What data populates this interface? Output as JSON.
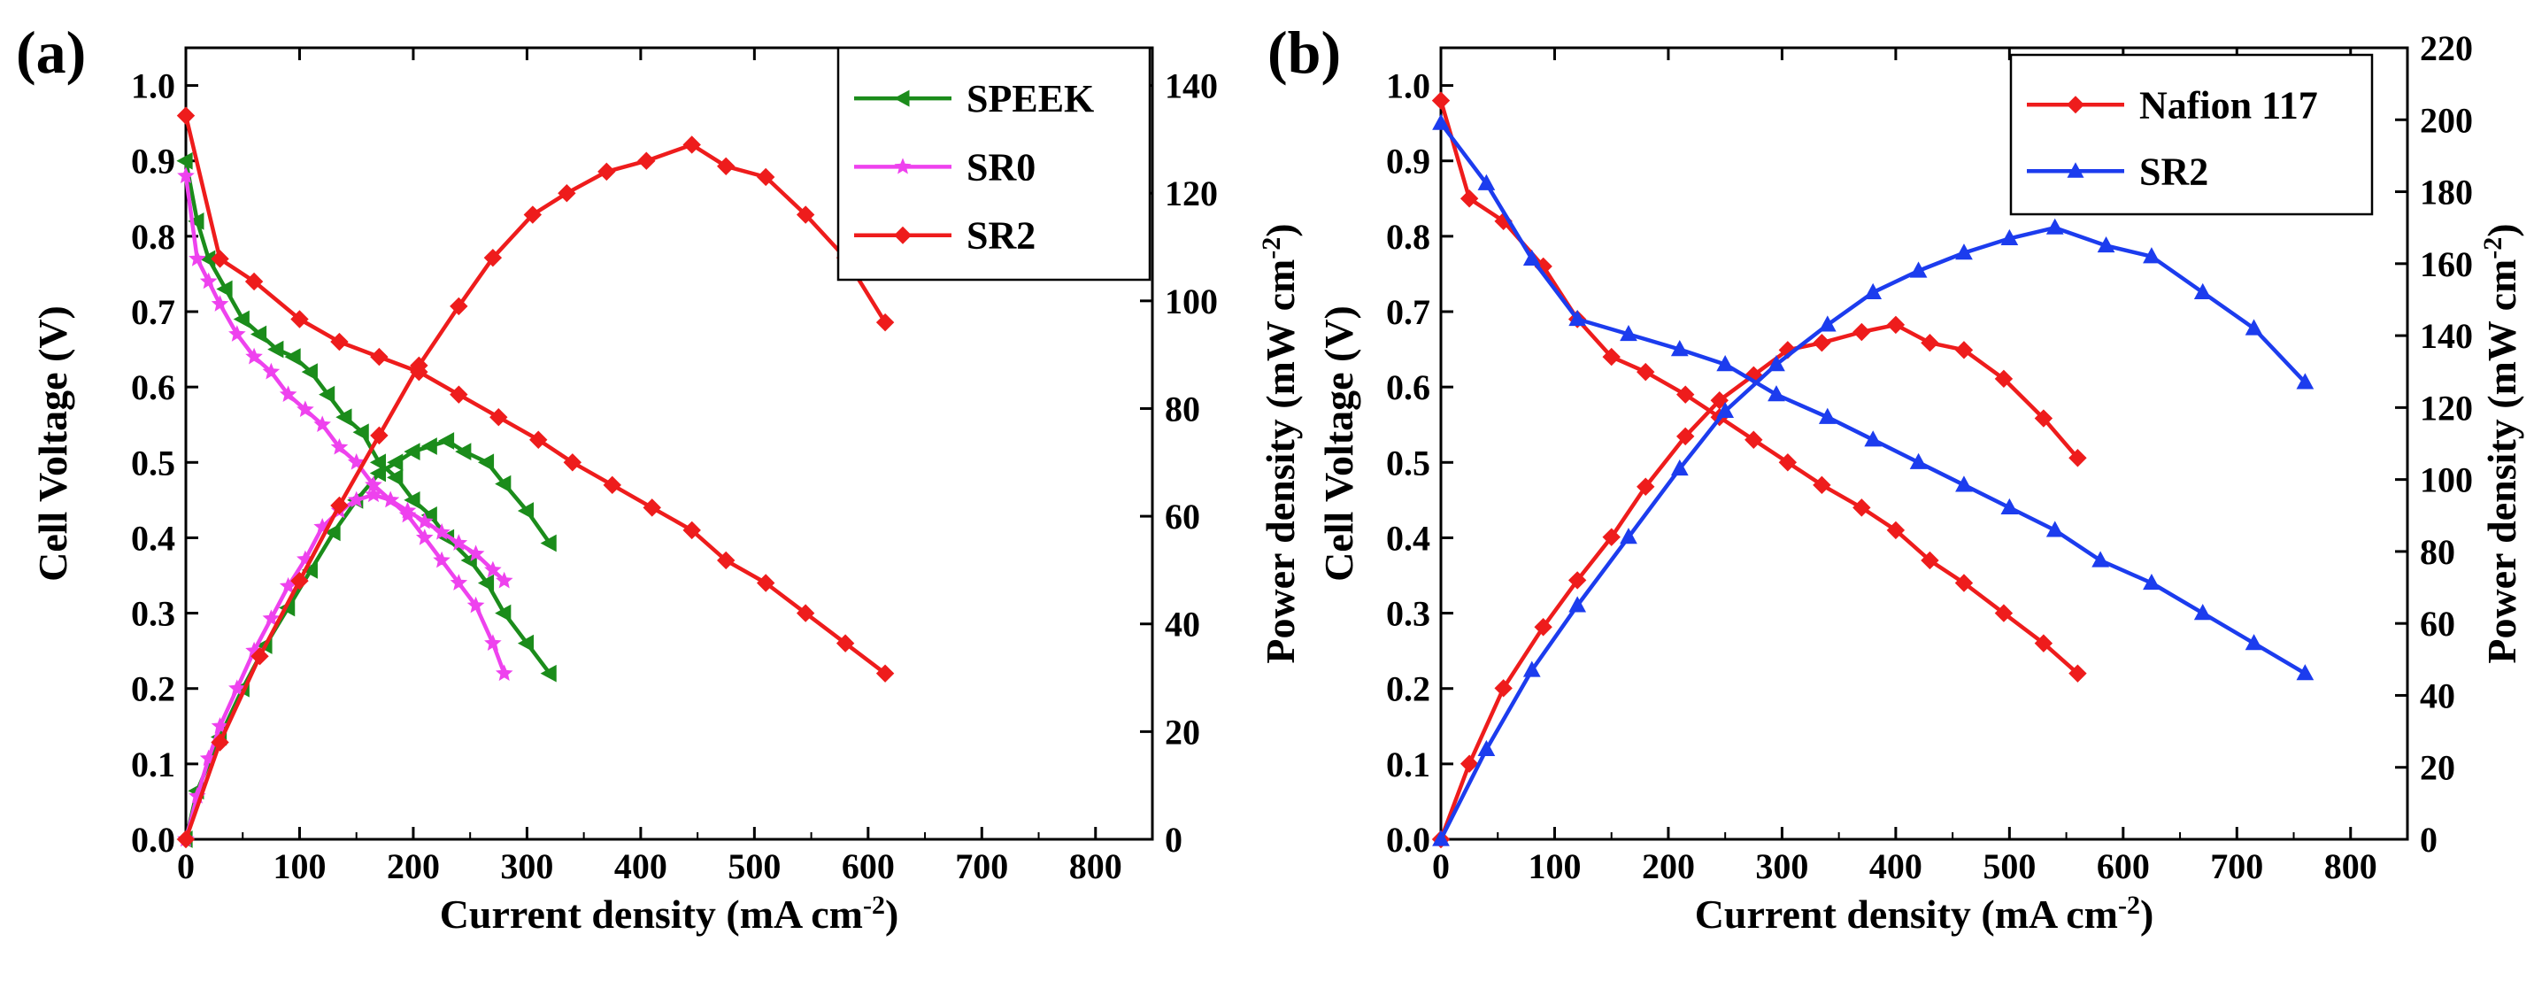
{
  "chart_data": [
    {
      "type": "line",
      "panel_label": "(a)",
      "xlabel": "Current density (mA cm",
      "xlabel_sup": "-2",
      "xlabel_end": ")",
      "ylabel_left": "Cell Voltage (V)",
      "ylabel_right": "Power density (mW cm",
      "ylabel_right_sup": "-2",
      "ylabel_right_end": ")",
      "xlim": [
        0,
        850
      ],
      "ylim_left": [
        0,
        1.05
      ],
      "ylim_right": [
        0,
        147
      ],
      "xticks": [
        "0",
        "100",
        "200",
        "300",
        "400",
        "500",
        "600",
        "700",
        "800"
      ],
      "xtick_values": [
        0,
        100,
        200,
        300,
        400,
        500,
        600,
        700,
        800
      ],
      "yticks_left": [
        "0.0",
        "0.1",
        "0.2",
        "0.3",
        "0.4",
        "0.5",
        "0.6",
        "0.7",
        "0.8",
        "0.9",
        "1.0"
      ],
      "ytick_left_values": [
        0,
        0.1,
        0.2,
        0.3,
        0.4,
        0.5,
        0.6,
        0.7,
        0.8,
        0.9,
        1.0
      ],
      "yticks_right": [
        "0",
        "20",
        "40",
        "60",
        "80",
        "100",
        "120",
        "140"
      ],
      "ytick_right_values": [
        0,
        20,
        40,
        60,
        80,
        100,
        120,
        140
      ],
      "legend_position": "top-right",
      "series": [
        {
          "name": "SPEEK",
          "color": "#1b8c1b",
          "marker": "triangle-left",
          "voltage": {
            "x": [
              0,
              10,
              20,
              35,
              50,
              65,
              80,
              95,
              110,
              125,
              140,
              155,
              170,
              185,
              200,
              215,
              230,
              250,
              265,
              280,
              300,
              320
            ],
            "y": [
              0.9,
              0.82,
              0.77,
              0.73,
              0.69,
              0.67,
              0.65,
              0.64,
              0.62,
              0.59,
              0.56,
              0.54,
              0.5,
              0.48,
              0.45,
              0.43,
              0.4,
              0.37,
              0.34,
              0.3,
              0.26,
              0.22
            ]
          },
          "power": {
            "x": [
              0,
              10,
              30,
              50,
              70,
              90,
              110,
              130,
              150,
              170,
              185,
              200,
              215,
              230,
              245,
              265,
              280,
              300,
              320
            ],
            "y": [
              0,
              9,
              19,
              28,
              36,
              43,
              50,
              57,
              63,
              68,
              70,
              72,
              73,
              74,
              72,
              70,
              66,
              61,
              55
            ]
          }
        },
        {
          "name": "SR0",
          "color": "#ee42ee",
          "marker": "star",
          "voltage": {
            "x": [
              0,
              10,
              20,
              30,
              45,
              60,
              75,
              90,
              105,
              120,
              135,
              150,
              165,
              180,
              195,
              210,
              225,
              240,
              255,
              270,
              280
            ],
            "y": [
              0.88,
              0.77,
              0.74,
              0.71,
              0.67,
              0.64,
              0.62,
              0.59,
              0.57,
              0.55,
              0.52,
              0.5,
              0.47,
              0.45,
              0.43,
              0.4,
              0.37,
              0.34,
              0.31,
              0.26,
              0.22
            ]
          },
          "power": {
            "x": [
              0,
              10,
              20,
              30,
              45,
              60,
              75,
              90,
              105,
              120,
              135,
              150,
              165,
              180,
              195,
              210,
              225,
              240,
              255,
              270,
              280
            ],
            "y": [
              0,
              8,
              15,
              21,
              28,
              35,
              41,
              47,
              52,
              58,
              61,
              63,
              64,
              63,
              61,
              59,
              57,
              55,
              53,
              50,
              48
            ]
          }
        },
        {
          "name": "SR2",
          "color": "#ee1c1c",
          "marker": "diamond",
          "voltage": {
            "x": [
              0,
              30,
              60,
              100,
              135,
              170,
              205,
              240,
              275,
              310,
              340,
              375,
              410,
              445,
              475,
              510,
              545,
              580,
              615
            ],
            "y": [
              0.96,
              0.77,
              0.74,
              0.69,
              0.66,
              0.64,
              0.62,
              0.59,
              0.56,
              0.53,
              0.5,
              0.47,
              0.44,
              0.41,
              0.37,
              0.34,
              0.3,
              0.26,
              0.22
            ]
          },
          "power": {
            "x": [
              0,
              30,
              65,
              100,
              135,
              170,
              205,
              240,
              270,
              305,
              335,
              370,
              405,
              445,
              475,
              510,
              545,
              580,
              615
            ],
            "y": [
              0,
              18,
              34,
              48,
              62,
              75,
              88,
              99,
              108,
              116,
              120,
              124,
              126,
              129,
              125,
              123,
              116,
              108,
              96
            ]
          }
        }
      ]
    },
    {
      "type": "line",
      "panel_label": "(b)",
      "xlabel": "Current density (mA cm",
      "xlabel_sup": "-2",
      "xlabel_end": ")",
      "ylabel_left": "Cell Voltage (V)",
      "ylabel_right": "Power density (mW cm",
      "ylabel_right_sup": "-2",
      "ylabel_right_end": ")",
      "xlim": [
        0,
        850
      ],
      "ylim_left": [
        0,
        1.05
      ],
      "ylim_right": [
        0,
        220
      ],
      "xticks": [
        "0",
        "100",
        "200",
        "300",
        "400",
        "500",
        "600",
        "700",
        "800"
      ],
      "xtick_values": [
        0,
        100,
        200,
        300,
        400,
        500,
        600,
        700,
        800
      ],
      "yticks_left": [
        "0.0",
        "0.1",
        "0.2",
        "0.3",
        "0.4",
        "0.5",
        "0.6",
        "0.7",
        "0.8",
        "0.9",
        "1.0"
      ],
      "ytick_left_values": [
        0,
        0.1,
        0.2,
        0.3,
        0.4,
        0.5,
        0.6,
        0.7,
        0.8,
        0.9,
        1.0
      ],
      "yticks_right": [
        "0",
        "20",
        "40",
        "60",
        "80",
        "100",
        "120",
        "140",
        "160",
        "180",
        "200",
        "220"
      ],
      "ytick_right_values": [
        0,
        20,
        40,
        60,
        80,
        100,
        120,
        140,
        160,
        180,
        200,
        220
      ],
      "legend_position": "top-right",
      "series": [
        {
          "name": "Nafion 117",
          "color": "#ee1c1c",
          "marker": "diamond",
          "voltage": {
            "x": [
              0,
              25,
              55,
              90,
              120,
              150,
              180,
              215,
              245,
              275,
              305,
              335,
              370,
              400,
              430,
              460,
              495,
              530,
              560
            ],
            "y": [
              0.98,
              0.85,
              0.82,
              0.76,
              0.69,
              0.64,
              0.62,
              0.59,
              0.56,
              0.53,
              0.5,
              0.47,
              0.44,
              0.41,
              0.37,
              0.34,
              0.3,
              0.26,
              0.22
            ]
          },
          "power": {
            "x": [
              0,
              25,
              55,
              90,
              120,
              150,
              180,
              215,
              245,
              275,
              305,
              335,
              370,
              400,
              430,
              460,
              495,
              530,
              560
            ],
            "y": [
              0,
              21,
              42,
              59,
              72,
              84,
              98,
              112,
              122,
              129,
              136,
              138,
              141,
              143,
              138,
              136,
              128,
              117,
              106
            ]
          }
        },
        {
          "name": "SR2",
          "color": "#1c3cee",
          "marker": "triangle-up",
          "voltage": {
            "x": [
              0,
              40,
              80,
              120,
              165,
              210,
              250,
              295,
              340,
              380,
              420,
              460,
              500,
              540,
              580,
              625,
              670,
              715,
              760
            ],
            "y": [
              0.95,
              0.87,
              0.77,
              0.69,
              0.67,
              0.65,
              0.63,
              0.59,
              0.56,
              0.53,
              0.5,
              0.47,
              0.44,
              0.41,
              0.37,
              0.34,
              0.3,
              0.26,
              0.22
            ]
          },
          "power": {
            "x": [
              0,
              40,
              80,
              120,
              165,
              210,
              250,
              295,
              340,
              380,
              420,
              460,
              500,
              540,
              585,
              625,
              670,
              715,
              760
            ],
            "y": [
              0,
              25,
              47,
              65,
              84,
              103,
              119,
              132,
              143,
              152,
              158,
              163,
              167,
              170,
              165,
              162,
              152,
              142,
              127
            ]
          }
        }
      ]
    }
  ]
}
